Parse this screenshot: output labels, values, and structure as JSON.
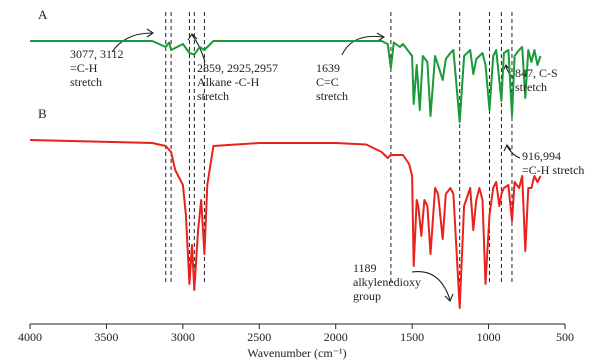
{
  "chart_data": {
    "type": "line",
    "xlabel": "Wavenumber (cm⁻¹)",
    "xlim": [
      4000,
      500
    ],
    "xticks": [
      4000,
      3500,
      3000,
      2500,
      2000,
      1500,
      1000,
      500
    ],
    "ylim": [
      0,
      100
    ],
    "markers": [
      3112,
      3077,
      2957,
      2925,
      2859,
      1639,
      1189,
      994,
      916,
      847
    ],
    "series": [
      {
        "name": "A",
        "color": "#1a9a3a",
        "x": [
          4000,
          3200,
          3112,
          3090,
          3077,
          3000,
          2957,
          2925,
          2890,
          2859,
          2800,
          2000,
          1700,
          1660,
          1639,
          1620,
          1580,
          1560,
          1500,
          1490,
          1470,
          1450,
          1430,
          1400,
          1380,
          1350,
          1300,
          1280,
          1250,
          1230,
          1189,
          1160,
          1120,
          1100,
          1080,
          1040,
          1020,
          994,
          970,
          950,
          916,
          900,
          870,
          847,
          830,
          800,
          780,
          760,
          740,
          720,
          700,
          680,
          660
        ],
        "values": [
          93,
          93,
          91,
          92.5,
          90,
          92,
          89,
          88.5,
          91,
          90,
          93,
          93,
          93,
          92,
          84,
          92.5,
          91,
          92,
          88,
          72,
          85,
          70,
          88,
          86,
          68,
          88,
          80,
          87,
          89,
          90,
          66,
          88,
          90,
          82,
          87,
          89,
          85,
          70,
          88,
          90,
          73,
          89,
          90,
          68,
          88,
          90,
          91,
          74,
          90,
          86,
          90,
          85,
          88
        ]
      },
      {
        "name": "B",
        "color": "#e8231e",
        "x": [
          4000,
          3200,
          3112,
          3077,
          3050,
          3000,
          2980,
          2957,
          2940,
          2925,
          2900,
          2880,
          2859,
          2840,
          2800,
          2500,
          2000,
          1800,
          1700,
          1660,
          1639,
          1600,
          1560,
          1520,
          1500,
          1490,
          1470,
          1460,
          1440,
          1420,
          1400,
          1380,
          1350,
          1330,
          1300,
          1280,
          1250,
          1230,
          1189,
          1160,
          1120,
          1100,
          1080,
          1060,
          1040,
          1020,
          994,
          970,
          950,
          930,
          916,
          900,
          870,
          847,
          830,
          800,
          780,
          760,
          740,
          720,
          700,
          680,
          660
        ],
        "values": [
          60,
          59,
          58,
          56,
          50,
          45,
          35,
          12,
          25,
          10,
          30,
          40,
          22,
          45,
          58,
          59,
          59,
          58.5,
          56,
          54,
          55,
          55,
          55,
          52,
          48,
          18,
          40,
          38,
          28,
          40,
          38,
          22,
          44,
          42,
          27,
          42,
          44,
          42,
          4,
          38,
          44,
          30,
          40,
          44,
          40,
          12,
          35,
          44,
          46,
          38,
          42,
          44,
          45,
          33,
          46,
          44,
          48,
          23,
          44,
          44,
          48,
          46,
          48
        ]
      }
    ],
    "annotations": [
      {
        "lines": [
          "3077, 3112",
          "=C-H",
          "stretch"
        ]
      },
      {
        "lines": [
          "2859, 2925,2957",
          "Alkane -C-H",
          "stretch"
        ]
      },
      {
        "lines": [
          "1639",
          "C=C",
          "stretch"
        ]
      },
      {
        "lines": [
          "847, C-S",
          "stretch"
        ]
      },
      {
        "lines": [
          "916,994",
          "=C-H stretch"
        ]
      },
      {
        "lines": [
          "1189",
          "alkylenedioxy",
          "group"
        ]
      }
    ]
  }
}
